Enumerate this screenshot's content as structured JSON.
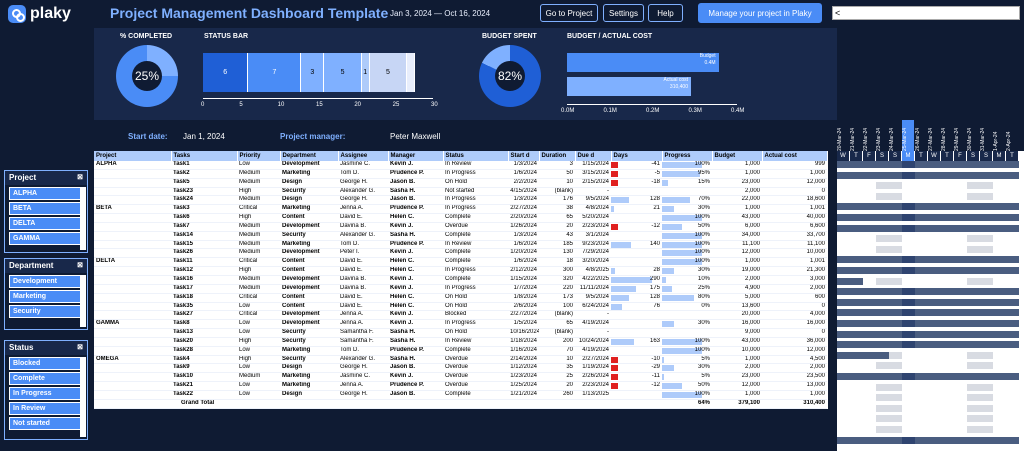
{
  "header": {
    "logo": "plaky",
    "title": "Project Management Dashboard Template",
    "daterange": "Jan 3, 2024 — Oct 16, 2024",
    "btn_goto": "Go to Project",
    "btn_settings": "Settings",
    "btn_help": "Help",
    "btn_manage": "Manage your project in Plaky",
    "scroll_glyph": "<"
  },
  "summary": {
    "completed_label": "% COMPLETED",
    "completed_value": "25%",
    "completed_fraction": 0.25,
    "statusbar_label": "STATUS BAR",
    "budget_spent_label": "BUDGET SPENT",
    "budget_spent_value": "82%",
    "budget_spent_fraction": 0.82,
    "budget_actual_label": "BUDGET / ACTUAL COST"
  },
  "status_bar": {
    "segments": [
      {
        "value": 6,
        "label": "6",
        "color": "#1f5fd6"
      },
      {
        "value": 7,
        "label": "7",
        "color": "#4a8cf6"
      },
      {
        "value": 3,
        "label": "3",
        "color": "#7fb0ff"
      },
      {
        "value": 5,
        "label": "5",
        "color": "#7fb0ff"
      },
      {
        "value": 1,
        "label": "1",
        "color": "#aecbfa"
      },
      {
        "value": 5,
        "label": "5",
        "color": "#c7d6f5"
      },
      {
        "value": 1,
        "label": "",
        "color": "#e8eefc"
      }
    ],
    "ticks": [
      "0",
      "5",
      "10",
      "15",
      "20",
      "25",
      "30"
    ]
  },
  "budget_chart": {
    "budget_label": "Budget",
    "budget_value": "0.4M",
    "actual_label": "Actual cost",
    "actual_value": "310,400",
    "budget": 0.379,
    "actual": 0.31,
    "ticks": [
      "0.0M",
      "0.1M",
      "0.2M",
      "0.3M",
      "0.4M"
    ]
  },
  "info": {
    "start_label": "Start date:",
    "start_value": "Jan 1, 2024",
    "pm_label": "Project manager:",
    "pm_value": "Peter Maxwell"
  },
  "slicers": {
    "project": {
      "title": "Project",
      "items": [
        "ALPHA",
        "BETA",
        "DELTA",
        "GAMMA"
      ]
    },
    "department": {
      "title": "Department",
      "items": [
        "Development",
        "Marketing",
        "Security"
      ]
    },
    "status": {
      "title": "Status",
      "items": [
        "Blocked",
        "Complete",
        "In Progress",
        "In Review",
        "Not started"
      ]
    },
    "clear_icon": "⊠"
  },
  "table": {
    "columns": [
      "Project",
      "Tasks",
      "Priority",
      "Department",
      "Assignee",
      "Manager",
      "Status",
      "Start d",
      "Duration",
      "Due d",
      "Days",
      "Progress",
      "Budget",
      "Actual cost"
    ],
    "rows": [
      [
        "ALPHA",
        "Task1",
        "Low",
        "Development",
        "Jasmine C.",
        "Kevin J.",
        "In Review",
        "1/3/2024",
        "3",
        "1/15/2024",
        "-41",
        "100%",
        "1,000",
        "999"
      ],
      [
        "",
        "Task2",
        "Medium",
        "Marketing",
        "Tom D.",
        "Prudence P.",
        "In Progress",
        "1/6/2024",
        "50",
        "3/15/2024",
        "-5",
        "95%",
        "1,000",
        "1,000"
      ],
      [
        "",
        "Task5",
        "Medium",
        "Design",
        "George H.",
        "Jason B.",
        "On Hold",
        "2/2/2024",
        "10",
        "2/15/2024",
        "-18",
        "15%",
        "23,000",
        "12,000"
      ],
      [
        "",
        "Task23",
        "High",
        "Security",
        "Alexander G.",
        "Sasha H.",
        "Not started",
        "4/15/2024",
        "(blank)",
        "-",
        "",
        "",
        "2,000",
        "0"
      ],
      [
        "",
        "Task24",
        "Medium",
        "Design",
        "George H.",
        "Jason B.",
        "In Progress",
        "1/3/2024",
        "176",
        "9/5/2024",
        "128",
        "70%",
        "22,000",
        "18,600"
      ],
      [
        "BETA",
        "Task3",
        "Critical",
        "Marketing",
        "Jenna A.",
        "Prudence P.",
        "In Progress",
        "2/27/2024",
        "38",
        "4/8/2024",
        "21",
        "30%",
        "1,000",
        "1,001"
      ],
      [
        "",
        "Task6",
        "High",
        "Content",
        "David E.",
        "Helen C.",
        "Complete",
        "2/20/2024",
        "65",
        "5/20/2024",
        "",
        "100%",
        "43,000",
        "40,000"
      ],
      [
        "",
        "Task7",
        "Medium",
        "Development",
        "Davina B.",
        "Kevin J.",
        "Overdue",
        "1/26/2024",
        "20",
        "2/23/2024",
        "-12",
        "50%",
        "6,000",
        "6,600"
      ],
      [
        "",
        "Task14",
        "Medium",
        "Security",
        "Alexander G.",
        "Sasha H.",
        "Complete",
        "1/3/2024",
        "43",
        "3/1/2024",
        "",
        "100%",
        "34,000",
        "33,700"
      ],
      [
        "",
        "Task15",
        "Medium",
        "Marketing",
        "Tom D.",
        "Prudence P.",
        "In Review",
        "1/6/2024",
        "185",
        "9/23/2024",
        "140",
        "100%",
        "11,100",
        "11,100"
      ],
      [
        "",
        "Task26",
        "Medium",
        "Development",
        "Peter I.",
        "Kevin J.",
        "Complete",
        "1/20/2024",
        "130",
        "7/29/2024",
        "",
        "100%",
        "12,000",
        "10,000"
      ],
      [
        "DELTA",
        "Task11",
        "Critical",
        "Content",
        "David E.",
        "Helen C.",
        "Complete",
        "1/6/2024",
        "18",
        "3/20/2024",
        "",
        "100%",
        "1,000",
        "1,001"
      ],
      [
        "",
        "Task12",
        "High",
        "Content",
        "David E.",
        "Helen C.",
        "In Progress",
        "2/12/2024",
        "300",
        "4/8/2025",
        "28",
        "30%",
        "19,000",
        "21,300"
      ],
      [
        "",
        "Task16",
        "Medium",
        "Development",
        "Davina B.",
        "Kevin J.",
        "Complete",
        "1/15/2024",
        "320",
        "4/22/2025",
        "290",
        "10%",
        "2,000",
        "3,000"
      ],
      [
        "",
        "Task17",
        "Medium",
        "Development",
        "Davina B.",
        "Kevin J.",
        "In Progress",
        "1/7/2024",
        "220",
        "11/11/2024",
        "175",
        "25%",
        "4,900",
        "2,000"
      ],
      [
        "",
        "Task18",
        "Critical",
        "Content",
        "David E.",
        "Helen C.",
        "On Hold",
        "1/8/2024",
        "173",
        "9/5/2024",
        "128",
        "80%",
        "5,000",
        "600"
      ],
      [
        "",
        "Task35",
        "Low",
        "Content",
        "David E.",
        "Helen C.",
        "On Hold",
        "2/6/2024",
        "100",
        "6/24/2024",
        "76",
        "0%",
        "13,600",
        "0"
      ],
      [
        "",
        "Task27",
        "Critical",
        "Development",
        "Jenna A.",
        "Kevin J.",
        "Blocked",
        "2/27/2024",
        "(blank)",
        "-",
        "",
        "",
        "20,000",
        "4,000"
      ],
      [
        "GAMMA",
        "Task8",
        "Low",
        "Development",
        "Jenna A.",
        "Kevin J.",
        "In Progress",
        "1/5/2024",
        "65",
        "4/19/2024",
        "",
        "30%",
        "16,000",
        "16,000"
      ],
      [
        "",
        "Task13",
        "Low",
        "Security",
        "Samantha F.",
        "Sasha H.",
        "On Hold",
        "10/16/2024",
        "(blank)",
        "-",
        "",
        "",
        "9,000",
        "0"
      ],
      [
        "",
        "Task20",
        "High",
        "Security",
        "Samantha F.",
        "Sasha H.",
        "In Review",
        "1/18/2024",
        "200",
        "10/24/2024",
        "163",
        "100%",
        "43,000",
        "36,000"
      ],
      [
        "",
        "Task28",
        "Low",
        "Marketing",
        "Tom D.",
        "Prudence P.",
        "Complete",
        "1/16/2024",
        "70",
        "4/19/2024",
        "",
        "100%",
        "10,000",
        "12,000"
      ],
      [
        "OMEGA",
        "Task4",
        "High",
        "Security",
        "Alexander G.",
        "Sasha H.",
        "Overdue",
        "2/14/2024",
        "10",
        "2/27/2024",
        "-10",
        "5%",
        "1,000",
        "4,500"
      ],
      [
        "",
        "Task9",
        "Low",
        "Design",
        "George H.",
        "Jason B.",
        "Overdue",
        "1/12/2024",
        "35",
        "1/19/2024",
        "-29",
        "30%",
        "2,000",
        "2,000"
      ],
      [
        "",
        "Task10",
        "Medium",
        "Marketing",
        "Jasmine C.",
        "Kevin J.",
        "Overdue",
        "1/23/2024",
        "25",
        "2/26/2024",
        "-11",
        "5%",
        "23,000",
        "23,500"
      ],
      [
        "",
        "Task21",
        "Low",
        "Marketing",
        "Jenna A.",
        "Prudence P.",
        "Overdue",
        "1/25/2024",
        "20",
        "2/23/2024",
        "-12",
        "50%",
        "12,000",
        "13,000"
      ],
      [
        "",
        "Task22",
        "Low",
        "Design",
        "George H.",
        "Jason B.",
        "Complete",
        "1/21/2024",
        "260",
        "1/13/2025",
        "",
        "100%",
        "1,000",
        "1,000"
      ]
    ],
    "total": {
      "label": "Grand Total",
      "progress": "64%",
      "budget": "379,100",
      "actual": "310,400"
    }
  },
  "gantt": {
    "dates": [
      "20-Mar-24",
      "21-Mar-24",
      "22-Mar-24",
      "23-Mar-24",
      "24-Mar-24",
      "25-Mar-24",
      "26-Mar-24",
      "27-Mar-24",
      "28-Mar-24",
      "29-Mar-24",
      "30-Mar-24",
      "31-Mar-24",
      "1-Apr-24",
      "2-Apr-24"
    ],
    "days": [
      "W",
      "T",
      "F",
      "S",
      "S",
      "M",
      "T",
      "W",
      "T",
      "F",
      "S",
      "S",
      "M",
      "T"
    ]
  }
}
